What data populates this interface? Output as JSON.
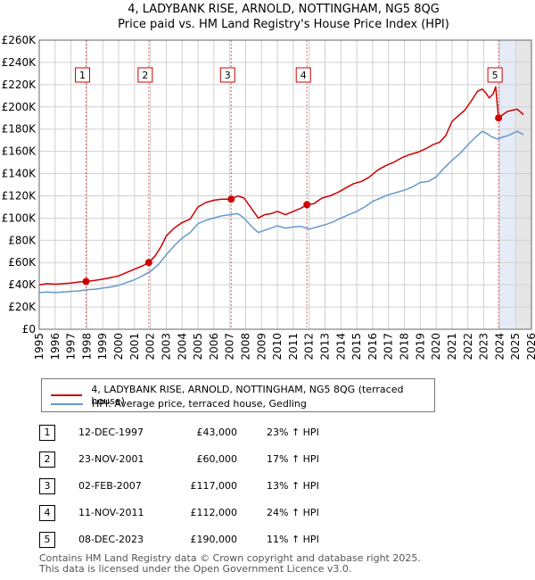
{
  "chart_data": {
    "type": "line",
    "title": "4, LADYBANK RISE, ARNOLD, NOTTINGHAM, NG5 8QG",
    "subtitle": "Price paid vs. HM Land Registry's House Price Index (HPI)",
    "xlabel": "",
    "ylabel": "",
    "xlim": [
      1995,
      2026
    ],
    "ylim": [
      0,
      260000
    ],
    "x_ticks": [
      1995,
      1996,
      1997,
      1998,
      1999,
      2000,
      2001,
      2002,
      2003,
      2004,
      2005,
      2006,
      2007,
      2008,
      2009,
      2010,
      2011,
      2012,
      2013,
      2014,
      2015,
      2016,
      2017,
      2018,
      2019,
      2020,
      2021,
      2022,
      2023,
      2024,
      2025,
      2026
    ],
    "y_ticks": [
      0,
      20000,
      40000,
      60000,
      80000,
      100000,
      120000,
      140000,
      160000,
      180000,
      200000,
      220000,
      240000,
      260000
    ],
    "y_tick_labels": [
      "£0",
      "£20K",
      "£40K",
      "£60K",
      "£80K",
      "£100K",
      "£120K",
      "£140K",
      "£160K",
      "£180K",
      "£200K",
      "£220K",
      "£240K",
      "£260K"
    ],
    "forecast_start": 2024.95,
    "series": [
      {
        "name": "4, LADYBANK RISE, ARNOLD, NOTTINGHAM, NG5 8QG (terraced house)",
        "color": "#cc0000",
        "x": [
          1995,
          1995.5,
          1996,
          1996.5,
          1997,
          1997.5,
          1997.95,
          1998.5,
          1999,
          1999.5,
          2000,
          2000.5,
          2001,
          2001.5,
          2001.9,
          2002.3,
          2002.7,
          2003,
          2003.5,
          2004,
          2004.5,
          2005,
          2005.5,
          2006,
          2006.5,
          2007.1,
          2007.5,
          2007.9,
          2008.4,
          2008.8,
          2009.2,
          2009.6,
          2010,
          2010.5,
          2011,
          2011.5,
          2011.86,
          2012.3,
          2012.8,
          2013.3,
          2013.8,
          2014.3,
          2014.8,
          2015.3,
          2015.8,
          2016.3,
          2016.8,
          2017.3,
          2017.8,
          2018.3,
          2018.8,
          2019.3,
          2019.8,
          2020.2,
          2020.6,
          2021,
          2021.4,
          2021.8,
          2022.2,
          2022.6,
          2022.9,
          2023.1,
          2023.35,
          2023.6,
          2023.75,
          2023.93,
          2024.2,
          2024.5,
          2024.8,
          2025.1,
          2025.5
        ],
        "values": [
          40000,
          41000,
          40500,
          41000,
          41500,
          42500,
          43000,
          44000,
          45000,
          46500,
          48000,
          51000,
          54000,
          57000,
          60000,
          66000,
          75000,
          84000,
          91000,
          96000,
          99000,
          110000,
          114000,
          116000,
          117000,
          117000,
          120000,
          118000,
          108000,
          100000,
          103000,
          104000,
          106000,
          103000,
          106000,
          109000,
          112000,
          113000,
          118000,
          120000,
          123000,
          127000,
          131000,
          133000,
          137000,
          143000,
          147000,
          150000,
          154000,
          157000,
          159000,
          162000,
          166000,
          168000,
          174000,
          187000,
          192000,
          197000,
          205000,
          214000,
          216000,
          213000,
          208000,
          212000,
          218000,
          190000,
          193000,
          196000,
          197000,
          198000,
          193000
        ]
      },
      {
        "name": "HPI: Average price, terraced house, Gedling",
        "color": "#6699cc",
        "x": [
          1995,
          1995.5,
          1996,
          1996.5,
          1997,
          1997.5,
          1998,
          1998.5,
          1999,
          1999.5,
          2000,
          2000.5,
          2001,
          2001.5,
          2002,
          2002.5,
          2003,
          2003.5,
          2004,
          2004.5,
          2005,
          2005.5,
          2006,
          2006.5,
          2007,
          2007.5,
          2007.9,
          2008.4,
          2008.8,
          2009.2,
          2009.6,
          2010,
          2010.5,
          2011,
          2011.5,
          2012,
          2012.5,
          2013,
          2013.5,
          2014,
          2014.5,
          2015,
          2015.5,
          2016,
          2016.5,
          2017,
          2017.5,
          2018,
          2018.5,
          2019,
          2019.5,
          2020,
          2020.5,
          2021,
          2021.5,
          2022,
          2022.5,
          2022.9,
          2023.2,
          2023.5,
          2023.9,
          2024.2,
          2024.5,
          2024.8,
          2025.1,
          2025.5
        ],
        "values": [
          33000,
          33500,
          33000,
          33500,
          34000,
          34500,
          35500,
          36000,
          37000,
          38000,
          39500,
          42000,
          44500,
          48000,
          52000,
          58000,
          67000,
          75000,
          82000,
          87000,
          95000,
          98000,
          100000,
          102000,
          103000,
          104000,
          100000,
          92000,
          87000,
          89000,
          91000,
          93000,
          91000,
          92000,
          92500,
          90000,
          92000,
          94000,
          96500,
          100000,
          103000,
          106000,
          110000,
          115000,
          118000,
          121000,
          123000,
          125000,
          128000,
          132000,
          133000,
          137000,
          145000,
          152000,
          158000,
          166000,
          173000,
          178000,
          176000,
          173000,
          171000,
          173000,
          174000,
          176000,
          178000,
          175000
        ]
      }
    ],
    "sales": [
      {
        "num": "1",
        "year": 1997.95,
        "price": 43000,
        "date": "12-DEC-1997",
        "price_label": "£43,000",
        "hpi": "23% ↑ HPI"
      },
      {
        "num": "2",
        "year": 2001.9,
        "price": 60000,
        "date": "23-NOV-2001",
        "price_label": "£60,000",
        "hpi": "17% ↑ HPI"
      },
      {
        "num": "3",
        "year": 2007.09,
        "price": 117000,
        "date": "02-FEB-2007",
        "price_label": "£117,000",
        "hpi": "13% ↑ HPI"
      },
      {
        "num": "4",
        "year": 2011.86,
        "price": 112000,
        "date": "11-NOV-2011",
        "price_label": "£112,000",
        "hpi": "24% ↑ HPI"
      },
      {
        "num": "5",
        "year": 2023.93,
        "price": 190000,
        "date": "08-DEC-2023",
        "price_label": "£190,000",
        "hpi": "11% ↑ HPI"
      }
    ]
  },
  "legend": {
    "property_label": "4, LADYBANK RISE, ARNOLD, NOTTINGHAM, NG5 8QG (terraced house)",
    "hpi_label": "HPI: Average price, terraced house, Gedling",
    "property_color": "#cc0000",
    "hpi_color": "#6699cc"
  },
  "footer": {
    "line1": "Contains HM Land Registry data © Crown copyright and database right 2025.",
    "line2": "This data is licensed under the Open Government Licence v3.0."
  }
}
